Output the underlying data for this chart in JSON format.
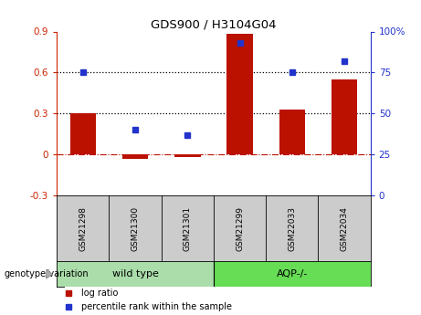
{
  "title": "GDS900 / H3104G04",
  "samples": [
    "GSM21298",
    "GSM21300",
    "GSM21301",
    "GSM21299",
    "GSM22033",
    "GSM22034"
  ],
  "log_ratios": [
    0.3,
    -0.03,
    -0.02,
    0.88,
    0.33,
    0.55
  ],
  "percentile_ranks": [
    75,
    40,
    37,
    93,
    75,
    82
  ],
  "groups": [
    {
      "label": "wild type",
      "indices": [
        0,
        1,
        2
      ],
      "color": "#aaddaa"
    },
    {
      "label": "AQP-/-",
      "indices": [
        3,
        4,
        5
      ],
      "color": "#66dd55"
    }
  ],
  "bar_color": "#bb1100",
  "dot_color": "#2233cc",
  "left_ylim": [
    -0.3,
    0.9
  ],
  "right_ylim": [
    0,
    100
  ],
  "left_yticks": [
    -0.3,
    0.0,
    0.3,
    0.6,
    0.9
  ],
  "right_yticks": [
    0,
    25,
    50,
    75,
    100
  ],
  "left_ytick_labels": [
    "-0.3",
    "0",
    "0.3",
    "0.6",
    "0.9"
  ],
  "right_ytick_labels": [
    "0",
    "25",
    "50",
    "75",
    "100%"
  ],
  "hline_y_left": [
    0.3,
    0.6
  ],
  "background_color": "#ffffff",
  "plot_bg_color": "#ffffff",
  "legend_log_ratio": "log ratio",
  "legend_percentile": "percentile rank within the sample",
  "genotype_label": "genotype/variation",
  "left_axis_color": "#cc2200",
  "right_axis_color": "#2233cc",
  "label_box_color": "#cccccc",
  "bar_width": 0.5
}
